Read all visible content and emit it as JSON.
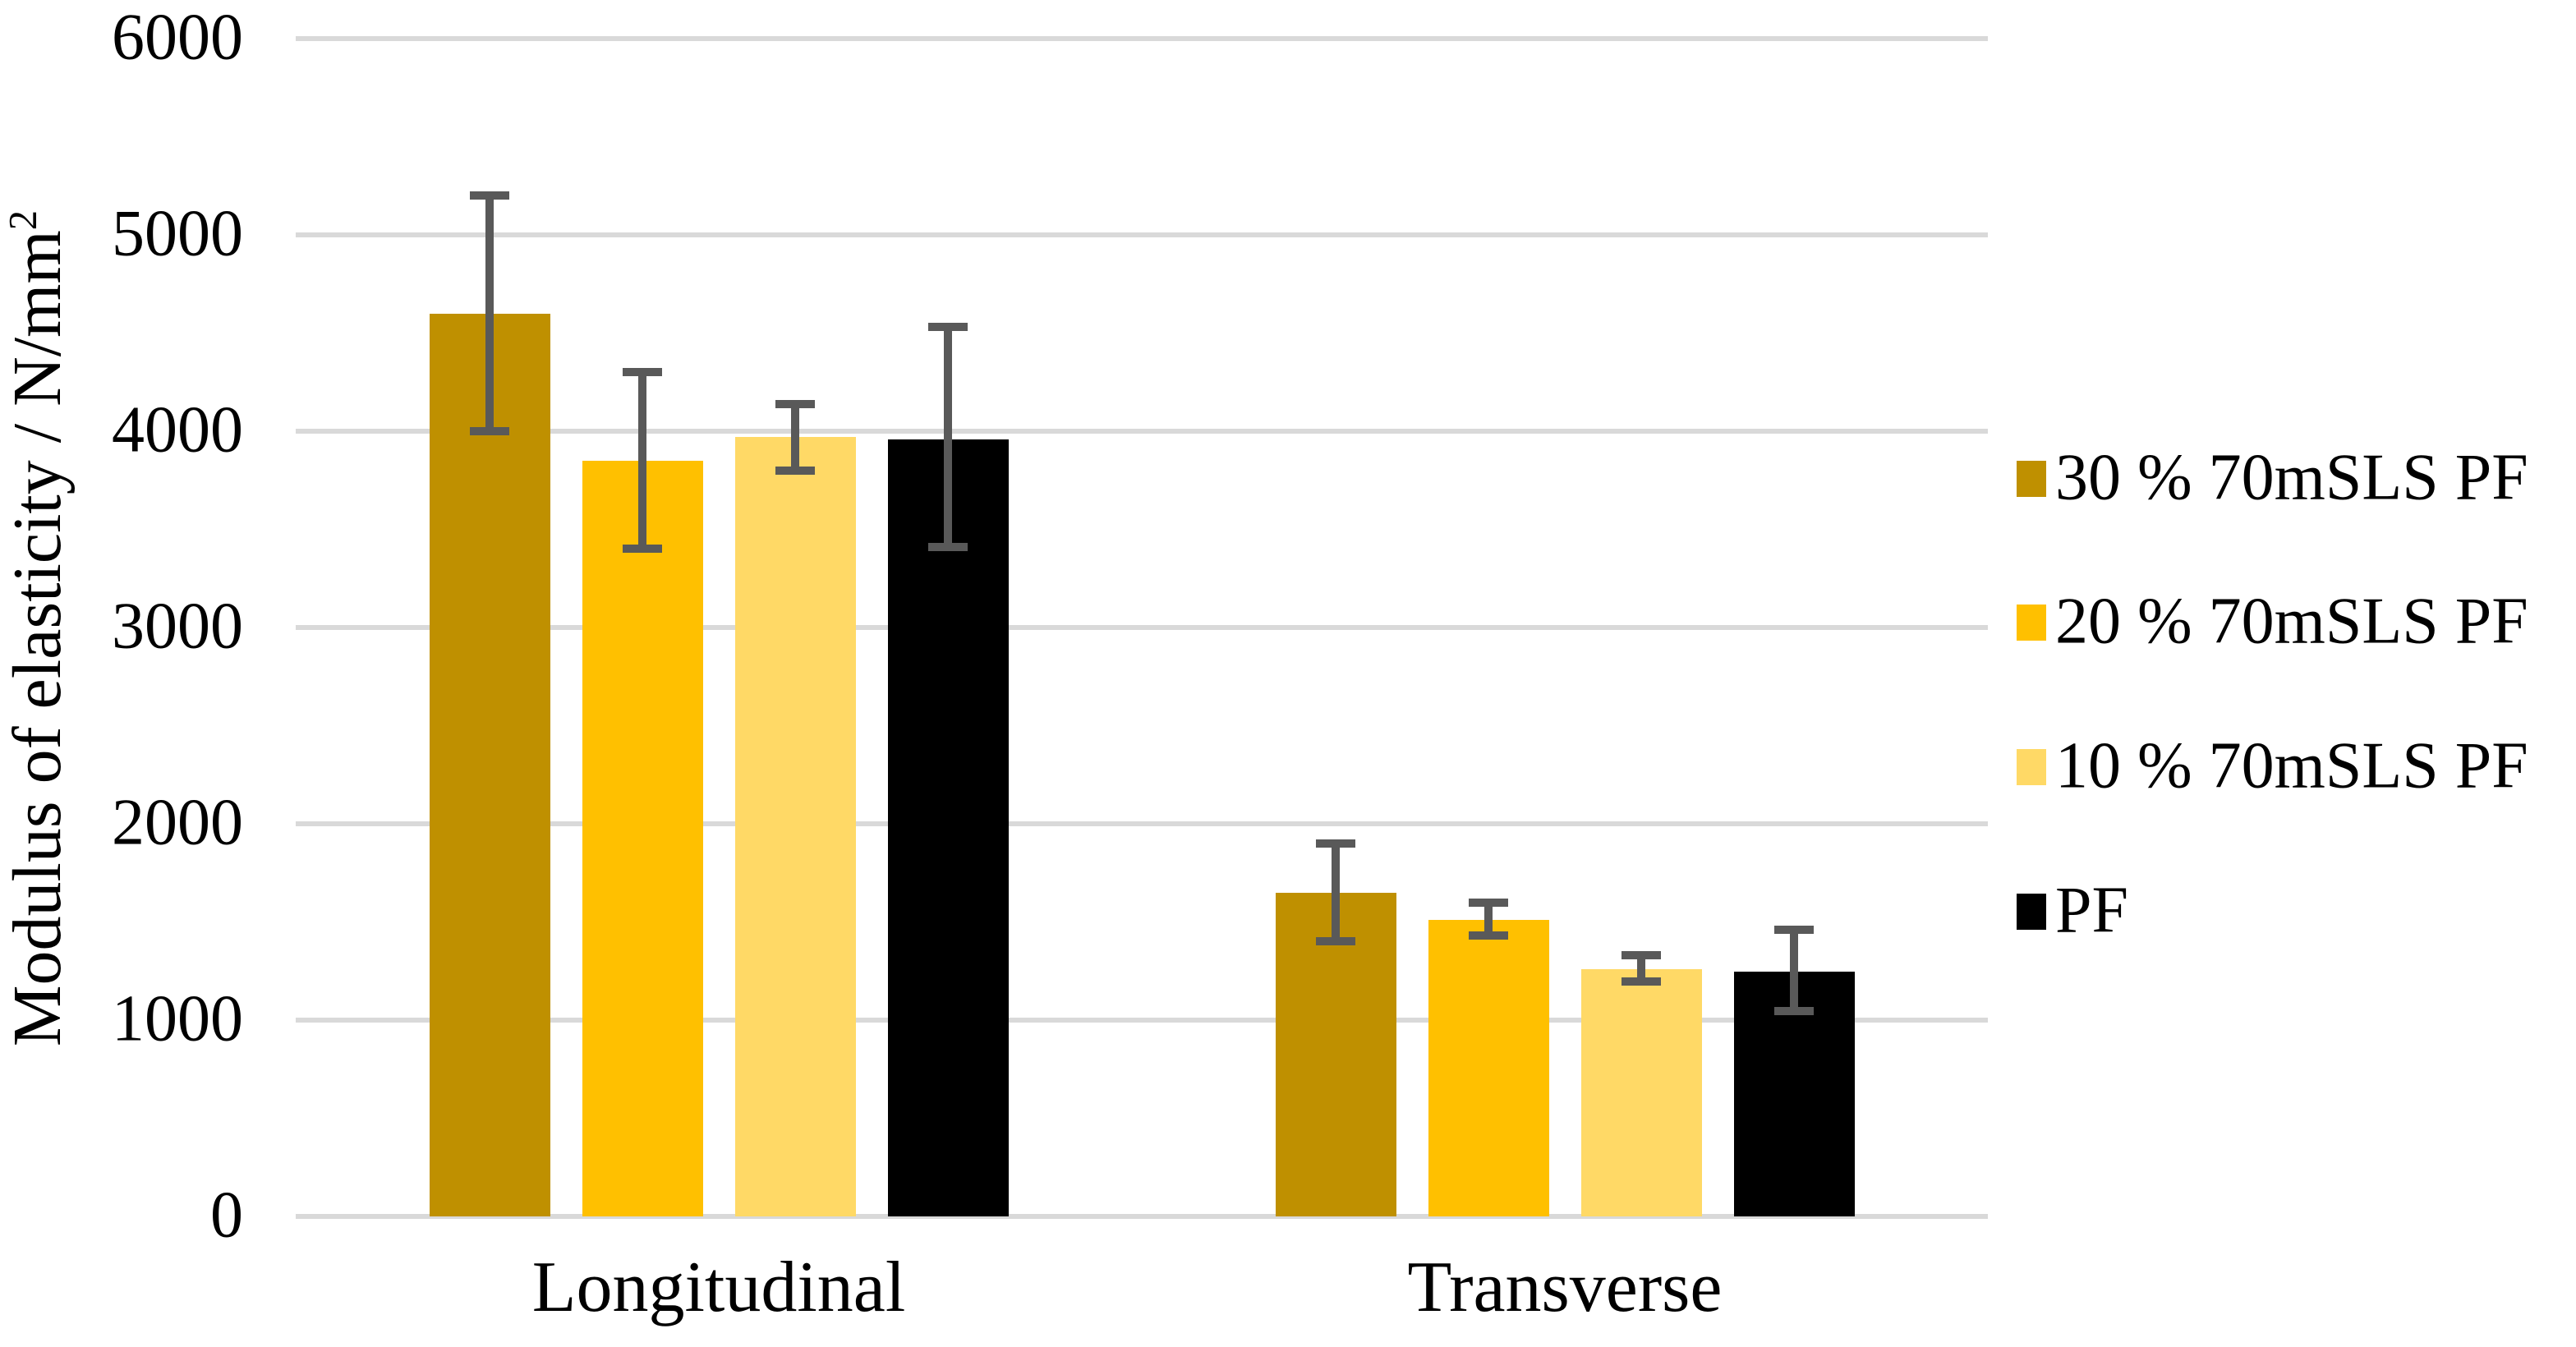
{
  "chart_data": {
    "type": "bar",
    "title": "",
    "ylabel": "Modulus of elasticity / N/mm²",
    "ylabel_base": "Modulus of elasticity / N/mm",
    "ylabel_exponent": "2",
    "xlabel": "",
    "categories": [
      "Longitudinal",
      "Transverse"
    ],
    "series": [
      {
        "name": "30 % 70mSLS PF",
        "color": "#BF9000",
        "values": [
          4600,
          1650
        ],
        "error_low": [
          4000,
          1400
        ],
        "error_high": [
          5200,
          1900
        ]
      },
      {
        "name": "20 % 70mSLS PF",
        "color": "#FFC000",
        "values": [
          3850,
          1510
        ],
        "error_low": [
          3400,
          1430
        ],
        "error_high": [
          4300,
          1600
        ]
      },
      {
        "name": "10 % 70mSLS PF",
        "color": "#FFD966",
        "values": [
          3970,
          1260
        ],
        "error_low": [
          3800,
          1195
        ],
        "error_high": [
          4140,
          1330
        ]
      },
      {
        "name": "PF",
        "color": "#000000",
        "values": [
          3960,
          1245
        ],
        "error_low": [
          3410,
          1045
        ],
        "error_high": [
          4530,
          1460
        ]
      }
    ],
    "yticks": [
      0,
      1000,
      2000,
      3000,
      4000,
      5000,
      6000
    ],
    "ylim": [
      0,
      6000
    ],
    "grid": true,
    "gridline_color": "#D9D9D9",
    "error_bar_color": "#595959",
    "legend_position": "right"
  }
}
